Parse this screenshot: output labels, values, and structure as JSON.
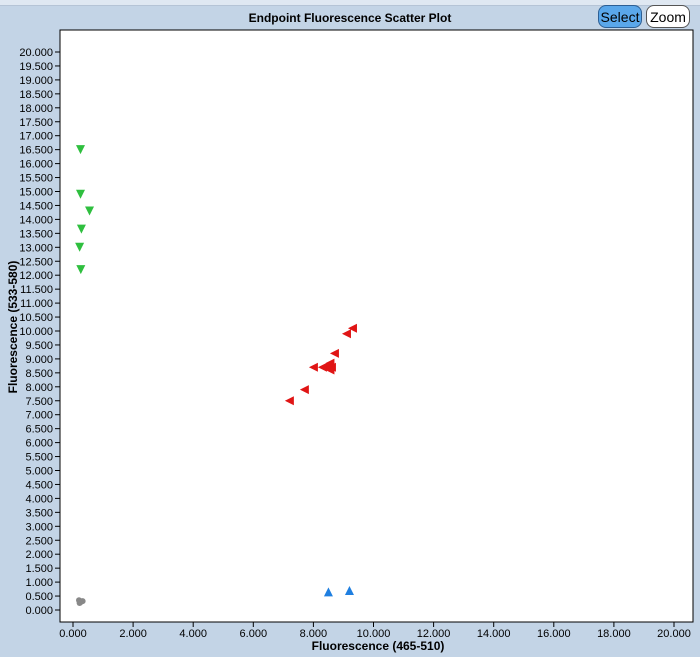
{
  "toolbar": {
    "select_label": "Select",
    "zoom_label": "Zoom"
  },
  "chart_data": {
    "type": "scatter",
    "title": "Endpoint Fluorescence Scatter Plot",
    "xlabel": "Fluorescence (465-510)",
    "ylabel": "Fluorescence (533-580)",
    "xlim": [
      0,
      20
    ],
    "ylim": [
      0,
      20
    ],
    "x_ticks": [
      "0.000",
      "2.000",
      "4.000",
      "6.000",
      "8.000",
      "10.000",
      "12.000",
      "14.000",
      "16.000",
      "18.000",
      "20.000"
    ],
    "y_ticks": [
      "0.000",
      "0.500",
      "1.000",
      "1.500",
      "2.000",
      "2.500",
      "3.000",
      "3.500",
      "4.000",
      "4.500",
      "5.000",
      "5.500",
      "6.000",
      "6.500",
      "7.000",
      "7.500",
      "8.000",
      "8.500",
      "9.000",
      "9.500",
      "10.000",
      "10.500",
      "11.000",
      "11.500",
      "12.000",
      "12.500",
      "13.000",
      "13.500",
      "14.000",
      "14.500",
      "15.000",
      "15.500",
      "16.000",
      "16.500",
      "17.000",
      "17.500",
      "18.000",
      "18.500",
      "19.000",
      "19.500",
      "20.000"
    ],
    "grid": false,
    "series": [
      {
        "marker": "triangle-down",
        "color": "#2fbf3f",
        "points": [
          [
            0.25,
            16.5
          ],
          [
            0.25,
            14.9
          ],
          [
            0.55,
            14.3
          ],
          [
            0.28,
            13.65
          ],
          [
            0.22,
            13.0
          ],
          [
            0.26,
            12.2
          ]
        ]
      },
      {
        "marker": "triangle-left",
        "color": "#e01515",
        "points": [
          [
            9.3,
            10.1
          ],
          [
            9.1,
            9.9
          ],
          [
            8.7,
            9.2
          ],
          [
            8.55,
            8.85
          ],
          [
            8.45,
            8.75
          ],
          [
            8.6,
            8.7
          ],
          [
            8.5,
            8.65
          ],
          [
            8.3,
            8.7
          ],
          [
            8.55,
            8.6
          ],
          [
            8.0,
            8.7
          ],
          [
            7.7,
            7.9
          ],
          [
            7.2,
            7.5
          ]
        ]
      },
      {
        "marker": "triangle-up",
        "color": "#1f7fe0",
        "points": [
          [
            8.5,
            0.65
          ],
          [
            9.2,
            0.7
          ]
        ]
      },
      {
        "marker": "circle",
        "color": "#888888",
        "points": [
          [
            0.2,
            0.35
          ],
          [
            0.28,
            0.3
          ],
          [
            0.25,
            0.28
          ],
          [
            0.32,
            0.32
          ],
          [
            0.22,
            0.25
          ]
        ]
      }
    ]
  }
}
